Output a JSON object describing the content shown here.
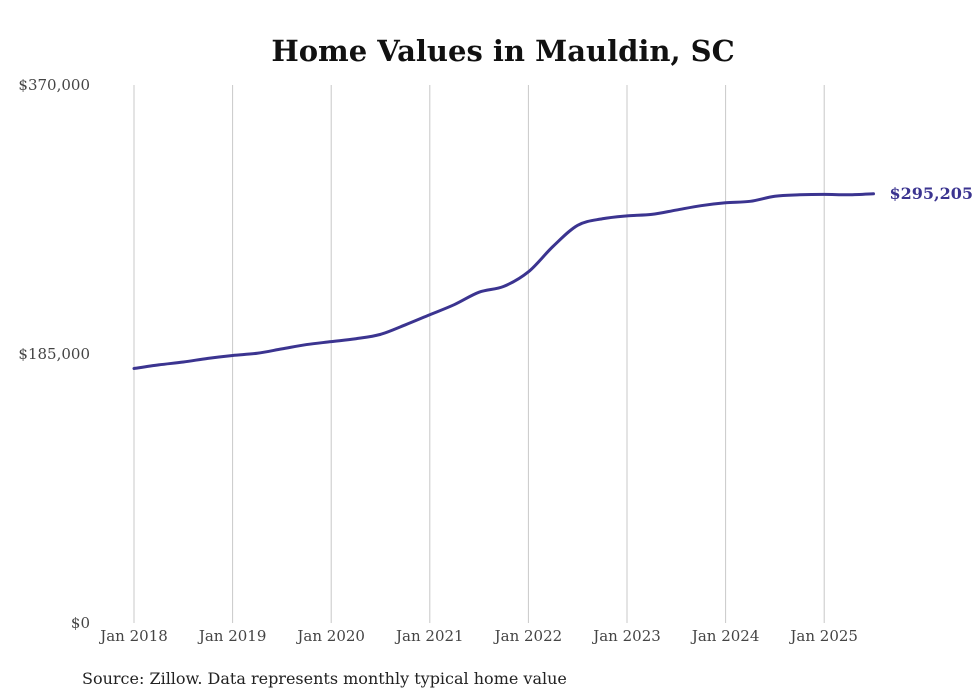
{
  "colors": {
    "series": "#3b3490",
    "grid": "#c8c8c8",
    "text": "#444444"
  },
  "chart_data": {
    "type": "line",
    "title": "Home Values in Mauldin, SC",
    "xlabel": "",
    "ylabel": "",
    "x_ticks": [
      "Jan 2018",
      "Jan 2019",
      "Jan 2020",
      "Jan 2021",
      "Jan 2022",
      "Jan 2023",
      "Jan 2024",
      "Jan 2025"
    ],
    "y_ticks": [
      "$0",
      "$185,000",
      "$370,000"
    ],
    "ylim": [
      0,
      370000
    ],
    "xlim": [
      "2018-01",
      "2025-07"
    ],
    "grid": "vertical",
    "series": [
      {
        "values": [
          {
            "x": "2018-01",
            "y": 175000
          },
          {
            "x": "2018-04",
            "y": 177500
          },
          {
            "x": "2018-07",
            "y": 179500
          },
          {
            "x": "2018-10",
            "y": 182000
          },
          {
            "x": "2019-01",
            "y": 184000
          },
          {
            "x": "2019-04",
            "y": 185500
          },
          {
            "x": "2019-07",
            "y": 188500
          },
          {
            "x": "2019-10",
            "y": 191500
          },
          {
            "x": "2020-01",
            "y": 193500
          },
          {
            "x": "2020-04",
            "y": 195500
          },
          {
            "x": "2020-07",
            "y": 198500
          },
          {
            "x": "2020-10",
            "y": 205000
          },
          {
            "x": "2021-01",
            "y": 212000
          },
          {
            "x": "2021-04",
            "y": 219000
          },
          {
            "x": "2021-07",
            "y": 227500
          },
          {
            "x": "2021-10",
            "y": 231500
          },
          {
            "x": "2022-01",
            "y": 241500
          },
          {
            "x": "2022-04",
            "y": 259000
          },
          {
            "x": "2022-07",
            "y": 273500
          },
          {
            "x": "2022-10",
            "y": 278000
          },
          {
            "x": "2023-01",
            "y": 280000
          },
          {
            "x": "2023-04",
            "y": 281000
          },
          {
            "x": "2023-07",
            "y": 284000
          },
          {
            "x": "2023-10",
            "y": 287000
          },
          {
            "x": "2024-01",
            "y": 289000
          },
          {
            "x": "2024-04",
            "y": 290000
          },
          {
            "x": "2024-07",
            "y": 293500
          },
          {
            "x": "2024-10",
            "y": 294500
          },
          {
            "x": "2025-01",
            "y": 294800
          },
          {
            "x": "2025-04",
            "y": 294500
          },
          {
            "x": "2025-07",
            "y": 295205
          }
        ]
      }
    ],
    "end_label": "$295,205",
    "source": "Source: Zillow. Data represents monthly typical home value"
  }
}
